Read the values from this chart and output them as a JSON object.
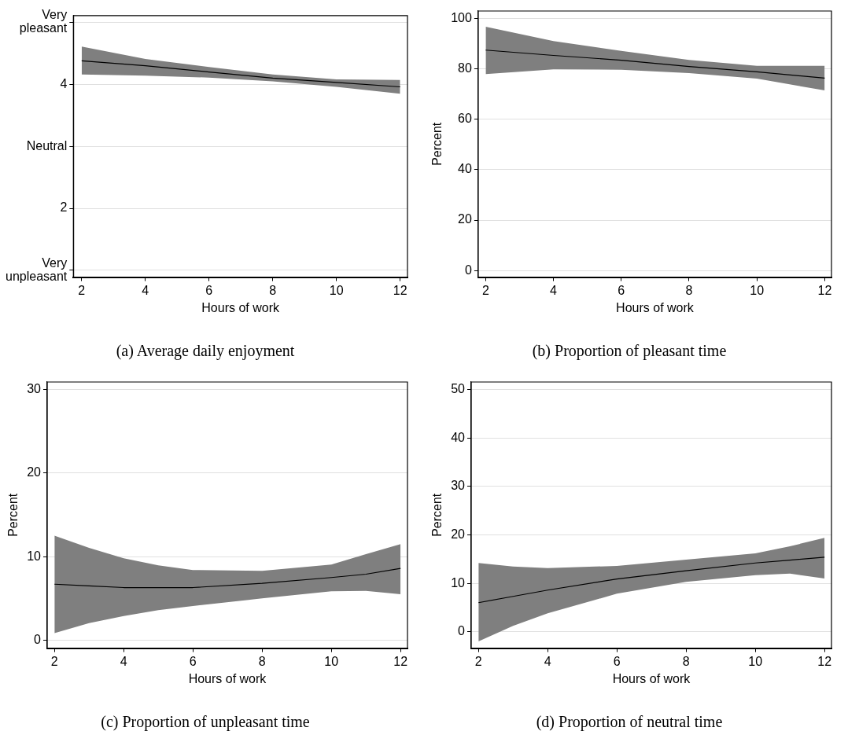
{
  "chart_data": [
    {
      "type": "line",
      "title": "(a) Average daily enjoyment",
      "xlabel": "Hours of work",
      "xlim": [
        1.74,
        12.23
      ],
      "xticks": [
        2,
        4,
        6,
        8,
        10,
        12
      ],
      "ylim": [
        0.89,
        5.11
      ],
      "yticks": [
        {
          "value": 1,
          "label": "Very unpleasant"
        },
        2,
        {
          "value": 3,
          "label": "Neutral"
        },
        4,
        {
          "value": 5,
          "label": "Very pleasant"
        }
      ],
      "grid": "y",
      "series": [
        {
          "color": "#000000",
          "x": [
            2,
            4,
            6,
            8,
            10,
            12
          ],
          "values": [
            4.38,
            4.3,
            4.2,
            4.1,
            4.03,
            3.96
          ],
          "lower": [
            4.16,
            4.14,
            4.11,
            4.05,
            3.96,
            3.85
          ],
          "upper": [
            4.61,
            4.41,
            4.28,
            4.16,
            4.08,
            4.07
          ]
        }
      ]
    },
    {
      "type": "line",
      "title": "(b) Proportion of pleasant time",
      "xlabel": "Hours of work",
      "ylabel": "Percent",
      "xlim": [
        1.78,
        12.2
      ],
      "xticks": [
        2,
        4,
        6,
        8,
        10,
        12
      ],
      "ylim": [
        -2.6,
        102.9
      ],
      "yticks": [
        0,
        20,
        40,
        60,
        80,
        100
      ],
      "grid": "y",
      "series": [
        {
          "color": "#000000",
          "x": [
            2,
            4,
            6,
            8,
            10,
            12
          ],
          "values": [
            87.4,
            85.3,
            83.4,
            80.9,
            78.8,
            76.3
          ],
          "lower": [
            77.9,
            79.8,
            79.6,
            78.3,
            76.1,
            71.4
          ],
          "upper": [
            96.7,
            91.0,
            87.1,
            83.5,
            81.2,
            81.2
          ]
        }
      ]
    },
    {
      "type": "line",
      "title": "(c) Proportion of unpleasant time",
      "xlabel": "Hours of work",
      "ylabel": "Percent",
      "xlim": [
        1.79,
        12.2
      ],
      "xticks": [
        2,
        4,
        6,
        8,
        10,
        12
      ],
      "ylim": [
        -0.95,
        30.9
      ],
      "yticks": [
        0,
        10,
        20,
        30
      ],
      "grid": "y",
      "series": [
        {
          "color": "#000000",
          "x": [
            2,
            3,
            4,
            5,
            6,
            8,
            10,
            11,
            12
          ],
          "values": [
            6.7,
            6.5,
            6.3,
            6.3,
            6.3,
            6.8,
            7.5,
            7.9,
            8.6
          ],
          "lower": [
            0.85,
            2.05,
            2.9,
            3.6,
            4.1,
            5.0,
            5.85,
            5.9,
            5.5
          ],
          "upper": [
            12.5,
            11.05,
            9.8,
            8.95,
            8.4,
            8.3,
            9.05,
            10.3,
            11.5
          ]
        }
      ]
    },
    {
      "type": "line",
      "title": "(d) Proportion of neutral time",
      "xlabel": "Hours of work",
      "ylabel": "Percent",
      "xlim": [
        1.79,
        12.2
      ],
      "xticks": [
        2,
        4,
        6,
        8,
        10,
        12
      ],
      "ylim": [
        -3.4,
        51.6
      ],
      "yticks": [
        0,
        10,
        20,
        30,
        40,
        50
      ],
      "grid": "y",
      "series": [
        {
          "color": "#000000",
          "x": [
            2,
            3,
            4,
            6,
            8,
            10,
            11,
            12
          ],
          "values": [
            6.0,
            7.3,
            8.6,
            10.9,
            12.6,
            14.2,
            14.8,
            15.4
          ],
          "lower": [
            -2.0,
            1.2,
            3.8,
            7.85,
            10.3,
            11.7,
            12.0,
            11.0
          ],
          "upper": [
            14.2,
            13.45,
            13.15,
            13.6,
            14.9,
            16.2,
            17.65,
            19.4
          ]
        }
      ]
    }
  ]
}
